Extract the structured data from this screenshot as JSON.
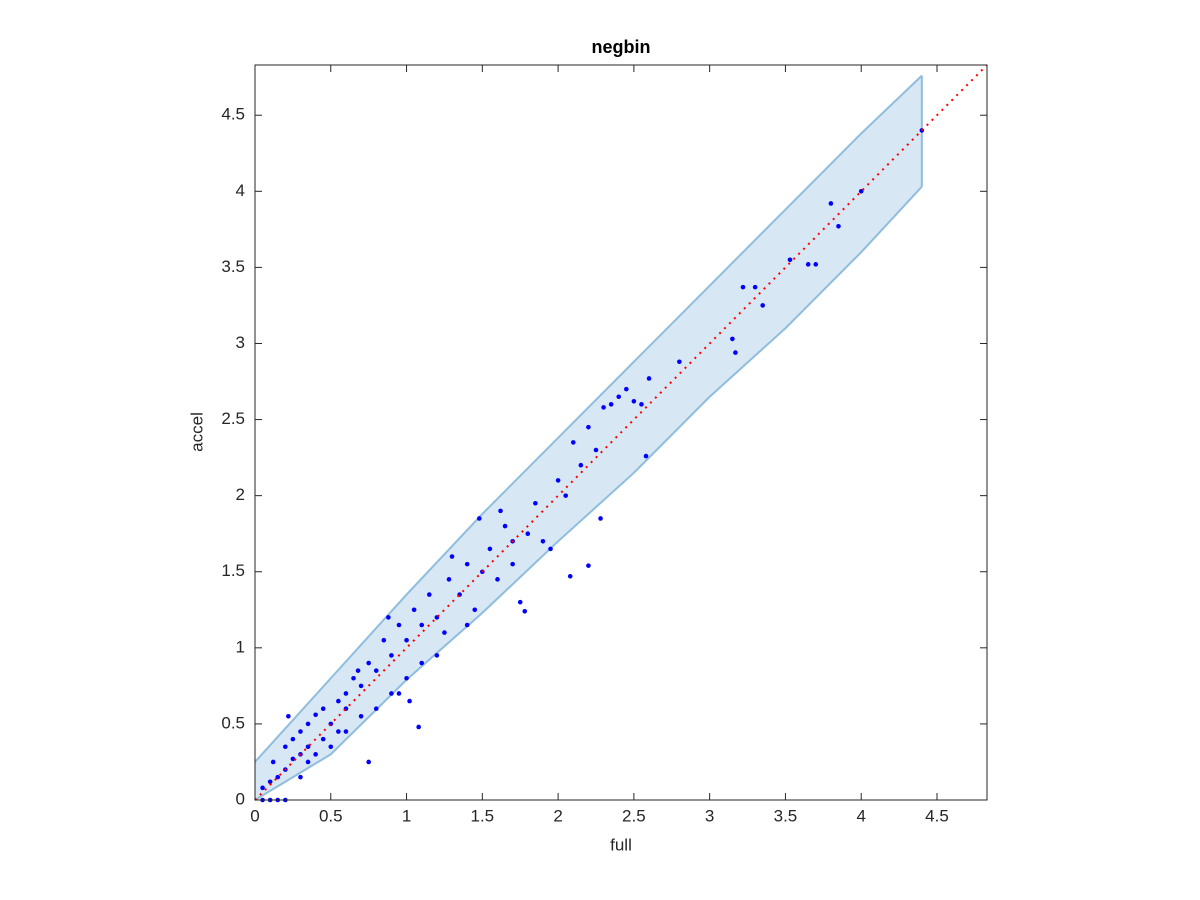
{
  "chart_data": {
    "type": "scatter",
    "title": "negbin",
    "xlabel": "full",
    "ylabel": "accel",
    "xlim": [
      0,
      4.83
    ],
    "ylim": [
      0,
      4.83
    ],
    "xticks": [
      0,
      0.5,
      1,
      1.5,
      2,
      2.5,
      3,
      3.5,
      4,
      4.5
    ],
    "yticks": [
      0,
      0.5,
      1,
      1.5,
      2,
      2.5,
      3,
      3.5,
      4,
      4.5
    ],
    "box": true,
    "band": {
      "x": [
        0,
        0.5,
        1,
        1.5,
        2,
        2.5,
        3,
        3.5,
        4,
        4.4
      ],
      "upper": [
        0.25,
        0.8,
        1.35,
        1.88,
        2.38,
        2.88,
        3.38,
        3.88,
        4.38,
        4.76
      ],
      "lower": [
        0,
        0.3,
        0.79,
        1.23,
        1.7,
        2.15,
        2.65,
        3.1,
        3.6,
        4.03
      ],
      "color": "#d7e7f4",
      "edge": "#8fbddd"
    },
    "reference_line": {
      "x": [
        0,
        4.83
      ],
      "values": [
        0,
        4.83
      ],
      "color": "#ff0000"
    },
    "series": [
      {
        "color": "#0000ff",
        "x": [
          0.05,
          0.1,
          0.15,
          0.2,
          0.05,
          0.1,
          0.15,
          0.2,
          0.25,
          0.3,
          0.35,
          0.2,
          0.25,
          0.3,
          0.35,
          0.4,
          0.45,
          0.4,
          0.45,
          0.5,
          0.55,
          0.5,
          0.6,
          0.65,
          0.6,
          0.7,
          0.75,
          0.7,
          0.8,
          0.85,
          0.8,
          0.9,
          0.95,
          0.9,
          1.0,
          1.05,
          1.0,
          1.1,
          1.15,
          1.1,
          1.2,
          1.25,
          1.3,
          1.2,
          1.35,
          1.4,
          1.45,
          1.5,
          1.4,
          1.55,
          1.6,
          1.65,
          1.7,
          1.75,
          1.8,
          1.85,
          1.9,
          1.7,
          2.0,
          2.05,
          2.1,
          2.15,
          2.2,
          2.25,
          2.3,
          2.35,
          2.4,
          2.45,
          2.5,
          2.55,
          2.6,
          2.8,
          3.15,
          3.17,
          3.22,
          3.3,
          3.35,
          3.53,
          3.65,
          3.7,
          3.8,
          3.85,
          4.0,
          4.4,
          1.08,
          1.78,
          2.08,
          2.2,
          0.75,
          0.95,
          0.6,
          0.3,
          0.12,
          0.22,
          0.35,
          0.55,
          0.68,
          0.88,
          1.02,
          1.28,
          1.48,
          1.62,
          1.95,
          2.28,
          2.58
        ],
        "values": [
          0,
          0,
          0,
          0,
          0.08,
          0.12,
          0.15,
          0.2,
          0.27,
          0.3,
          0.35,
          0.35,
          0.4,
          0.45,
          0.5,
          0.56,
          0.6,
          0.3,
          0.4,
          0.5,
          0.65,
          0.35,
          0.6,
          0.8,
          0.45,
          0.75,
          0.9,
          0.55,
          0.85,
          1.05,
          0.6,
          0.95,
          1.15,
          0.7,
          1.05,
          1.25,
          0.8,
          1.15,
          1.35,
          0.9,
          1.2,
          1.1,
          1.6,
          0.95,
          1.35,
          1.55,
          1.25,
          1.5,
          1.15,
          1.65,
          1.45,
          1.8,
          1.7,
          1.3,
          1.75,
          1.95,
          1.7,
          1.55,
          2.1,
          2.0,
          2.35,
          2.2,
          2.45,
          2.3,
          2.58,
          2.6,
          2.65,
          2.7,
          2.62,
          2.6,
          2.77,
          2.88,
          3.03,
          2.94,
          3.37,
          3.37,
          3.25,
          3.55,
          3.52,
          3.52,
          3.92,
          3.77,
          4.0,
          4.4,
          0.48,
          1.24,
          1.47,
          1.54,
          0.25,
          0.7,
          0.7,
          0.15,
          0.25,
          0.55,
          0.25,
          0.45,
          0.85,
          1.2,
          0.65,
          1.45,
          1.85,
          1.9,
          1.65,
          1.85,
          2.26
        ]
      }
    ]
  }
}
